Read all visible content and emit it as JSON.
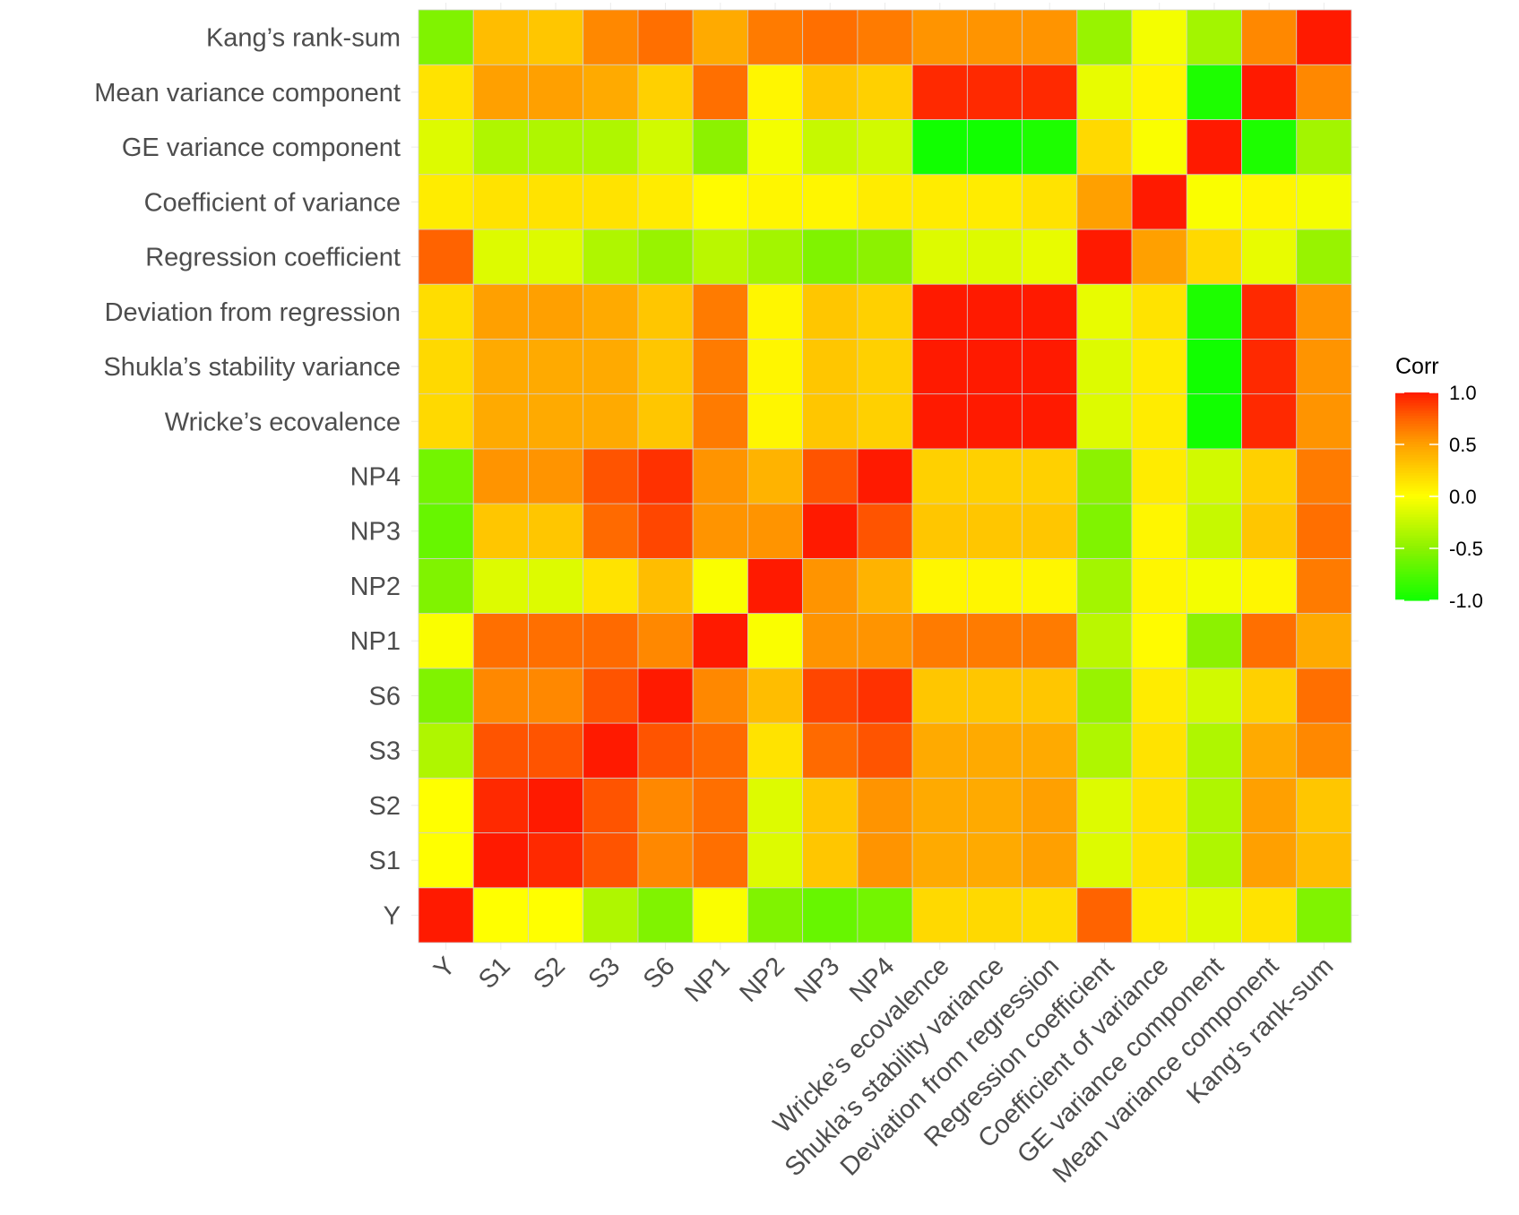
{
  "chart_data": {
    "type": "heatmap",
    "title": "",
    "xlabel": "",
    "ylabel": "",
    "variables": [
      "Y",
      "S1",
      "S2",
      "S3",
      "S6",
      "NP1",
      "NP2",
      "NP3",
      "NP4",
      "Wricke’s ecovalence",
      "Shukla’s stability variance",
      "Deviation from regression",
      "Regression coefficient",
      "Coefficient of variance",
      "GE variance component",
      "Mean variance component",
      "Kang’s rank-sum"
    ],
    "values": [
      [
        1.0,
        0.0,
        0.0,
        -0.35,
        -0.55,
        -0.02,
        -0.55,
        -0.65,
        -0.6,
        0.2,
        0.2,
        0.18,
        0.75,
        0.1,
        -0.15,
        0.15,
        -0.55
      ],
      [
        0.0,
        1.0,
        0.95,
        0.8,
        0.6,
        0.7,
        -0.15,
        0.3,
        0.55,
        0.45,
        0.45,
        0.5,
        -0.15,
        0.15,
        -0.35,
        0.5,
        0.35
      ],
      [
        0.0,
        0.95,
        1.0,
        0.8,
        0.6,
        0.7,
        -0.15,
        0.3,
        0.55,
        0.45,
        0.45,
        0.5,
        -0.15,
        0.15,
        -0.35,
        0.5,
        0.3
      ],
      [
        -0.35,
        0.8,
        0.8,
        1.0,
        0.8,
        0.72,
        0.15,
        0.72,
        0.8,
        0.45,
        0.45,
        0.45,
        -0.35,
        0.15,
        -0.35,
        0.45,
        0.6
      ],
      [
        -0.55,
        0.6,
        0.6,
        0.8,
        1.0,
        0.6,
        0.35,
        0.85,
        0.92,
        0.3,
        0.3,
        0.3,
        -0.45,
        0.1,
        -0.2,
        0.25,
        0.7
      ],
      [
        -0.02,
        0.7,
        0.7,
        0.72,
        0.6,
        1.0,
        -0.02,
        0.55,
        0.55,
        0.65,
        0.65,
        0.65,
        -0.3,
        0.02,
        -0.5,
        0.7,
        0.45
      ],
      [
        -0.55,
        -0.15,
        -0.15,
        0.15,
        0.35,
        -0.02,
        1.0,
        0.55,
        0.4,
        0.05,
        0.05,
        0.05,
        -0.4,
        0.05,
        -0.05,
        0.05,
        0.65
      ],
      [
        -0.65,
        0.3,
        0.3,
        0.72,
        0.85,
        0.55,
        0.55,
        1.0,
        0.8,
        0.3,
        0.3,
        0.3,
        -0.55,
        0.05,
        -0.25,
        0.3,
        0.7
      ],
      [
        -0.6,
        0.55,
        0.55,
        0.8,
        0.92,
        0.55,
        0.4,
        0.8,
        1.0,
        0.25,
        0.25,
        0.25,
        -0.5,
        0.1,
        -0.2,
        0.25,
        0.65
      ],
      [
        0.2,
        0.45,
        0.45,
        0.45,
        0.3,
        0.65,
        0.05,
        0.3,
        0.25,
        1.0,
        1.0,
        1.0,
        -0.15,
        0.1,
        -1.0,
        0.95,
        0.55
      ],
      [
        0.2,
        0.45,
        0.45,
        0.45,
        0.3,
        0.65,
        0.05,
        0.3,
        0.25,
        1.0,
        1.0,
        1.0,
        -0.15,
        0.1,
        -1.0,
        0.95,
        0.55
      ],
      [
        0.18,
        0.5,
        0.5,
        0.45,
        0.3,
        0.65,
        0.05,
        0.3,
        0.25,
        1.0,
        1.0,
        1.0,
        -0.1,
        0.15,
        -0.95,
        0.95,
        0.55
      ],
      [
        0.75,
        -0.15,
        -0.15,
        -0.35,
        -0.45,
        -0.3,
        -0.4,
        -0.55,
        -0.5,
        -0.15,
        -0.15,
        -0.1,
        1.0,
        0.5,
        0.2,
        -0.1,
        -0.45
      ],
      [
        0.1,
        0.15,
        0.15,
        0.15,
        0.1,
        0.02,
        0.05,
        0.05,
        0.1,
        0.1,
        0.1,
        0.15,
        0.5,
        1.0,
        -0.02,
        0.05,
        -0.05
      ],
      [
        -0.15,
        -0.35,
        -0.35,
        -0.35,
        -0.2,
        -0.5,
        -0.05,
        -0.25,
        -0.2,
        -1.0,
        -1.0,
        -0.95,
        0.2,
        -0.02,
        1.0,
        -0.95,
        -0.4
      ],
      [
        0.15,
        0.5,
        0.5,
        0.45,
        0.25,
        0.7,
        0.05,
        0.3,
        0.25,
        0.95,
        0.95,
        0.95,
        -0.1,
        0.05,
        -0.95,
        1.0,
        0.6
      ],
      [
        -0.55,
        0.35,
        0.3,
        0.6,
        0.7,
        0.45,
        0.65,
        0.7,
        0.65,
        0.55,
        0.55,
        0.55,
        -0.45,
        -0.05,
        -0.4,
        0.6,
        1.0
      ]
    ],
    "color_scale": {
      "range": [
        -1.0,
        1.0
      ],
      "low_color": "#11ff00",
      "mid_color": "#ffff00",
      "high_color": "#ff1a00",
      "stops": [
        {
          "value": -1.0,
          "color": "#11ff00"
        },
        {
          "value": -0.5,
          "color": "#8cf200"
        },
        {
          "value": 0.0,
          "color": "#ffff00"
        },
        {
          "value": 0.25,
          "color": "#ffd000"
        },
        {
          "value": 0.5,
          "color": "#ffa000"
        },
        {
          "value": 0.75,
          "color": "#ff6300"
        },
        {
          "value": 1.0,
          "color": "#ff1a00"
        }
      ]
    },
    "legend": {
      "title": "Corr",
      "ticks": [
        1.0,
        0.5,
        0.0,
        -0.5,
        -1.0
      ],
      "tick_labels": [
        "1.0",
        "0.5",
        "0.0",
        "-0.5",
        "-1.0"
      ],
      "position": "right"
    },
    "grid": true,
    "colors": {
      "cell_border": "#d0d0d0",
      "grid_line": "#ebebeb",
      "axis_text": "#4d4d4d",
      "legend_text": "#000000"
    }
  }
}
